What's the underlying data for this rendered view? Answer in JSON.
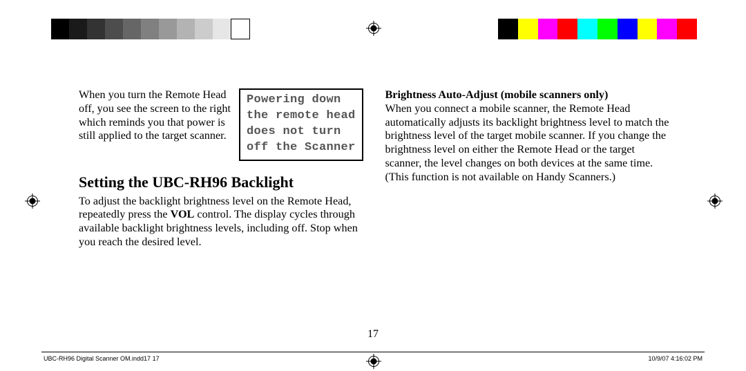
{
  "gray_swatches": [
    "#000000",
    "#1a1a1a",
    "#333333",
    "#4d4d4d",
    "#666666",
    "#808080",
    "#999999",
    "#b3b3b3",
    "#cccccc",
    "#e6e6e6",
    "#ffffff"
  ],
  "gray_border": "#000000",
  "color_swatches": [
    "#000000",
    "#ffff00",
    "#ff00ff",
    "#ff0000",
    "#00ffff",
    "#00ff00",
    "#0000ff",
    "#ffff00",
    "#ff00ff",
    "#ff0000"
  ],
  "intro_text": "When you turn the Remote Head off, you see the screen to the right which reminds you that power is still applied to the target scanner.",
  "lcd": {
    "line1": "Powering down",
    "line2": "the remote head",
    "line3": "does not turn",
    "line4": "off the Scanner"
  },
  "heading": "Setting the UBC-RH96 Backlight",
  "backlight_text_before": "To adjust the backlight brightness level on the Remote Head, repeatedly press the ",
  "vol_label": "VOL",
  "backlight_text_after": " control. The display cycles through available backlight brightness levels, including off. Stop when you reach the desired level.",
  "subheading": "Brightness Auto-Adjust (mobile scanners only)",
  "autoadjust_text": "When you connect a mobile scanner, the Remote Head automatically adjusts its backlight brightness level to match the brightness level of the target mobile scanner. If you change the brightness level on either the Remote Head or the target scanner, the level changes on both devices at the same time. (This function is not available on Handy Scanners.)",
  "page_number": "17",
  "footer_left": "UBC-RH96 Digital Scanner OM.indd17   17",
  "footer_right": "10/9/07   4:16:02 PM"
}
